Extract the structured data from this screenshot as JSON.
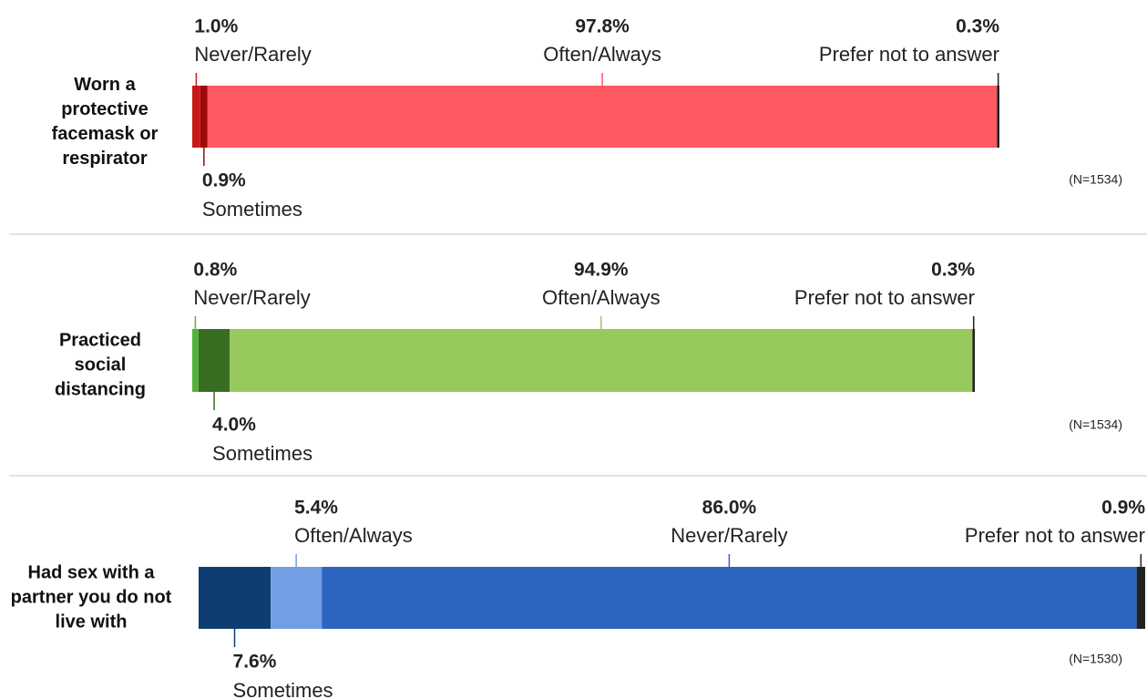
{
  "chart_data": [
    {
      "type": "bar",
      "categories": [
        "Worn a protective facemask or respirator"
      ],
      "note": "(N=1534)",
      "series": [
        {
          "name": "Never/Rarely",
          "color": "#c91a1a",
          "values": [
            1.0
          ],
          "value_labels": [
            "1.0%"
          ]
        },
        {
          "name": "Sometimes",
          "color": "#9e0a0a",
          "values": [
            0.9
          ],
          "value_labels": [
            "0.9%"
          ]
        },
        {
          "name": "Often/Always",
          "color": "#fe5961",
          "values": [
            97.8
          ],
          "value_labels": [
            "97.8%"
          ]
        },
        {
          "name": "Prefer not to answer",
          "color": "#222222",
          "values": [
            0.3
          ],
          "value_labels": [
            "0.3%"
          ]
        }
      ]
    },
    {
      "type": "bar",
      "categories": [
        "Practiced social distancing"
      ],
      "note": "(N=1534)",
      "series": [
        {
          "name": "Never/Rarely",
          "color": "#55b23a",
          "values": [
            0.8
          ],
          "value_labels": [
            "0.8%"
          ]
        },
        {
          "name": "Sometimes",
          "color": "#386e22",
          "values": [
            4.0
          ],
          "value_labels": [
            "4.0%"
          ]
        },
        {
          "name": "Often/Always",
          "color": "#97c95c",
          "values": [
            94.9
          ],
          "value_labels": [
            "94.9%"
          ]
        },
        {
          "name": "Prefer not to answer",
          "color": "#222222",
          "values": [
            0.3
          ],
          "value_labels": [
            "0.3%"
          ]
        }
      ]
    },
    {
      "type": "bar",
      "categories": [
        "Had sex with a partner you do not live with"
      ],
      "note": "(N=1530)",
      "series": [
        {
          "name": "Sometimes",
          "color": "#0f3d72",
          "values": [
            7.6
          ],
          "value_labels": [
            "7.6%"
          ]
        },
        {
          "name": "Often/Always",
          "color": "#739ee3",
          "values": [
            5.4
          ],
          "value_labels": [
            "5.4%"
          ]
        },
        {
          "name": "Never/Rarely",
          "color": "#2b65bf",
          "values": [
            86.0
          ],
          "value_labels": [
            "86.0%"
          ]
        },
        {
          "name": "Prefer not to answer",
          "color": "#222222",
          "values": [
            0.9
          ],
          "value_labels": [
            "0.9%"
          ]
        }
      ]
    }
  ]
}
